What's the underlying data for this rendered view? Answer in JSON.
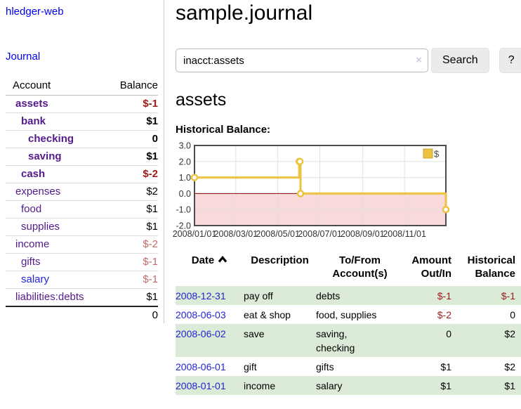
{
  "app": {
    "title": "hledger-web",
    "journal_link": "Journal"
  },
  "page": {
    "title": "sample.journal",
    "account_heading": "assets",
    "chart_label": "Historical Balance:"
  },
  "search": {
    "value": "inacct:assets",
    "clear_icon": "×",
    "button": "Search",
    "help_button": "?"
  },
  "colors": {
    "link_purple": "#551a8b",
    "link_blue": "#2323d6",
    "negative": "#9e1a1a",
    "negative_muted": "#c06a6a",
    "text": "#000000",
    "stripe_green": "#dcebd7",
    "divider": "#cccccc"
  },
  "sidebar": {
    "header": {
      "account": "Account",
      "balance": "Balance"
    },
    "accounts": [
      {
        "name": "assets",
        "indent": 1,
        "bold": true,
        "link": "purple",
        "balance": "$-1",
        "balance_style": "negative"
      },
      {
        "name": "bank",
        "indent": 2,
        "bold": true,
        "link": "purple",
        "balance": "$1",
        "balance_style": "normal"
      },
      {
        "name": "checking",
        "indent": 3,
        "bold": true,
        "link": "purple",
        "balance": "0",
        "balance_style": "normal"
      },
      {
        "name": "saving",
        "indent": 3,
        "bold": true,
        "link": "purple",
        "balance": "$1",
        "balance_style": "normal"
      },
      {
        "name": "cash",
        "indent": 2,
        "bold": true,
        "link": "purple",
        "balance": "$-2",
        "balance_style": "negative"
      },
      {
        "name": "expenses",
        "indent": 1,
        "bold": false,
        "link": "purple",
        "balance": "$2",
        "balance_style": "normal"
      },
      {
        "name": "food",
        "indent": 2,
        "bold": false,
        "link": "purple",
        "balance": "$1",
        "balance_style": "normal"
      },
      {
        "name": "supplies",
        "indent": 2,
        "bold": false,
        "link": "purple",
        "balance": "$1",
        "balance_style": "normal"
      },
      {
        "name": "income",
        "indent": 1,
        "bold": false,
        "link": "purple",
        "balance": "$-2",
        "balance_style": "muted-negative"
      },
      {
        "name": "gifts",
        "indent": 2,
        "bold": false,
        "link": "purple",
        "balance": "$-1",
        "balance_style": "muted-negative"
      },
      {
        "name": "salary",
        "indent": 2,
        "bold": false,
        "link": "blue",
        "balance": "$-1",
        "balance_style": "muted-negative"
      },
      {
        "name": "liabilities:debts",
        "indent": 1,
        "bold": false,
        "link": "purple",
        "balance": "$1",
        "balance_style": "normal"
      }
    ],
    "total": "0"
  },
  "register": {
    "headers": {
      "date": "Date",
      "description": "Description",
      "tofrom": "To/From\nAccount(s)",
      "amount": "Amount\nOut/In",
      "balance": "Historical\nBalance"
    },
    "sort_direction": "ascending",
    "rows": [
      {
        "date": "2008-12-31",
        "description": "pay off",
        "accounts": "debts",
        "amount": "$-1",
        "amount_negative": true,
        "balance": "$-1",
        "balance_negative": true,
        "shaded": true
      },
      {
        "date": "2008-06-03",
        "description": "eat & shop",
        "accounts": "food, supplies",
        "amount": "$-2",
        "amount_negative": true,
        "balance": "0",
        "balance_negative": false,
        "shaded": false
      },
      {
        "date": "2008-06-02",
        "description": "save",
        "accounts": "saving,\nchecking",
        "amount": "0",
        "amount_negative": false,
        "balance": "$2",
        "balance_negative": false,
        "shaded": true
      },
      {
        "date": "2008-06-01",
        "description": "gift",
        "accounts": "gifts",
        "amount": "$1",
        "amount_negative": false,
        "balance": "$2",
        "balance_negative": false,
        "shaded": false
      },
      {
        "date": "2008-01-01",
        "description": "income",
        "accounts": "salary",
        "amount": "$1",
        "amount_negative": false,
        "balance": "$1",
        "balance_negative": false,
        "shaded": true
      }
    ]
  },
  "chart_data": {
    "type": "line",
    "title": "Historical Balance",
    "step": true,
    "series": [
      {
        "name": "$",
        "color": "#edc240",
        "points": [
          [
            "2008-01-01",
            1
          ],
          [
            "2008-06-01",
            2
          ],
          [
            "2008-06-02",
            2
          ],
          [
            "2008-06-03",
            0
          ],
          [
            "2008-12-31",
            -1
          ]
        ]
      }
    ],
    "x_range": [
      "2008-01-01",
      "2008-12-31"
    ],
    "ylim": [
      -2,
      3
    ],
    "y_ticks": [
      "3.0",
      "2.0",
      "1.0",
      "0.0",
      "-1.0",
      "-2.0"
    ],
    "x_ticks": [
      {
        "date": "2008-01-01",
        "label": "2008/01/01"
      },
      {
        "date": "2008-03-01",
        "label": "2008/03/01"
      },
      {
        "date": "2008-05-01",
        "label": "2008/05/01"
      },
      {
        "date": "2008-07-01",
        "label": "2008/07/01"
      },
      {
        "date": "2008-09-01",
        "label": "2008/09/01"
      },
      {
        "date": "2008-11-01",
        "label": "2008/11/01"
      }
    ],
    "grid": true,
    "grid_color": "#e0e0e0",
    "border_color": "#4d4d4d",
    "zero_line_color": "#8b0000",
    "negative_region_color": "#f9dada",
    "legend": {
      "position": "top-right",
      "label": "$",
      "swatch_color": "#edc240",
      "swatch_border": "#c7a434"
    }
  }
}
